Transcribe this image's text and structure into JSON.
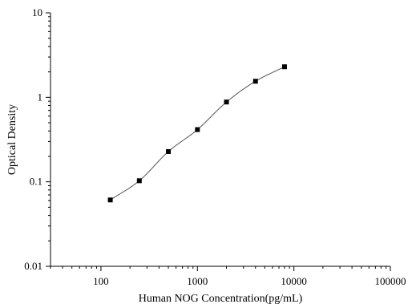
{
  "chart_data": {
    "type": "scatter",
    "title": "",
    "xlabel": "Human NOG Concentration(pg/mL)",
    "ylabel": "Optical Density",
    "xscale": "log",
    "yscale": "log",
    "xlim": [
      30,
      100000
    ],
    "ylim": [
      0.01,
      10
    ],
    "x_ticks": [
      "100",
      "1000",
      "10000",
      "100000"
    ],
    "y_ticks": [
      "0.01",
      "0.1",
      "1",
      "10"
    ],
    "grid": false,
    "legend": "none",
    "series": [
      {
        "x": [
          125,
          250,
          500,
          1000,
          2000,
          4000,
          8000
        ],
        "y": [
          0.061,
          0.103,
          0.228,
          0.415,
          0.88,
          1.55,
          2.3
        ],
        "marker": "square",
        "fitted_curve": true
      }
    ],
    "colors": {
      "marker": "#000000",
      "curve": "#555555",
      "axis": "#000000"
    }
  }
}
